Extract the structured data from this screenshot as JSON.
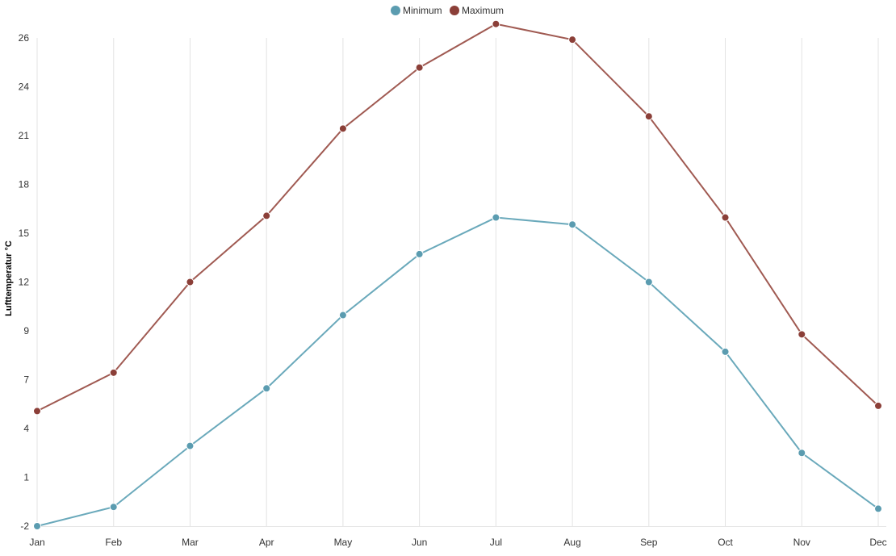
{
  "chart_data": {
    "type": "line",
    "title": "",
    "xlabel": "",
    "ylabel": "Lufttemperatur °C",
    "categories": [
      "Jan",
      "Feb",
      "Mar",
      "Apr",
      "May",
      "Jun",
      "Jul",
      "Aug",
      "Sep",
      "Oct",
      "Nov",
      "Dec"
    ],
    "y_ticks": [
      "-2",
      "1",
      "4",
      "7",
      "9",
      "12",
      "15",
      "18",
      "21",
      "24",
      "26"
    ],
    "ylim": [
      -2,
      26
    ],
    "grid": "vertical",
    "legend_position": "top-center",
    "series": [
      {
        "name": "Minimum",
        "color": "#6aa9bb",
        "marker_color": "#5b9cb0",
        "values": [
          -2.0,
          -0.9,
          2.6,
          5.9,
          10.1,
          13.6,
          15.7,
          15.3,
          12.0,
          8.0,
          2.2,
          -1.0
        ]
      },
      {
        "name": "Maximum",
        "color": "#a05a52",
        "marker_color": "#8b3f38",
        "values": [
          4.6,
          6.8,
          12.0,
          15.8,
          20.8,
          24.3,
          26.8,
          25.9,
          21.5,
          15.7,
          9.0,
          4.9
        ]
      }
    ]
  }
}
